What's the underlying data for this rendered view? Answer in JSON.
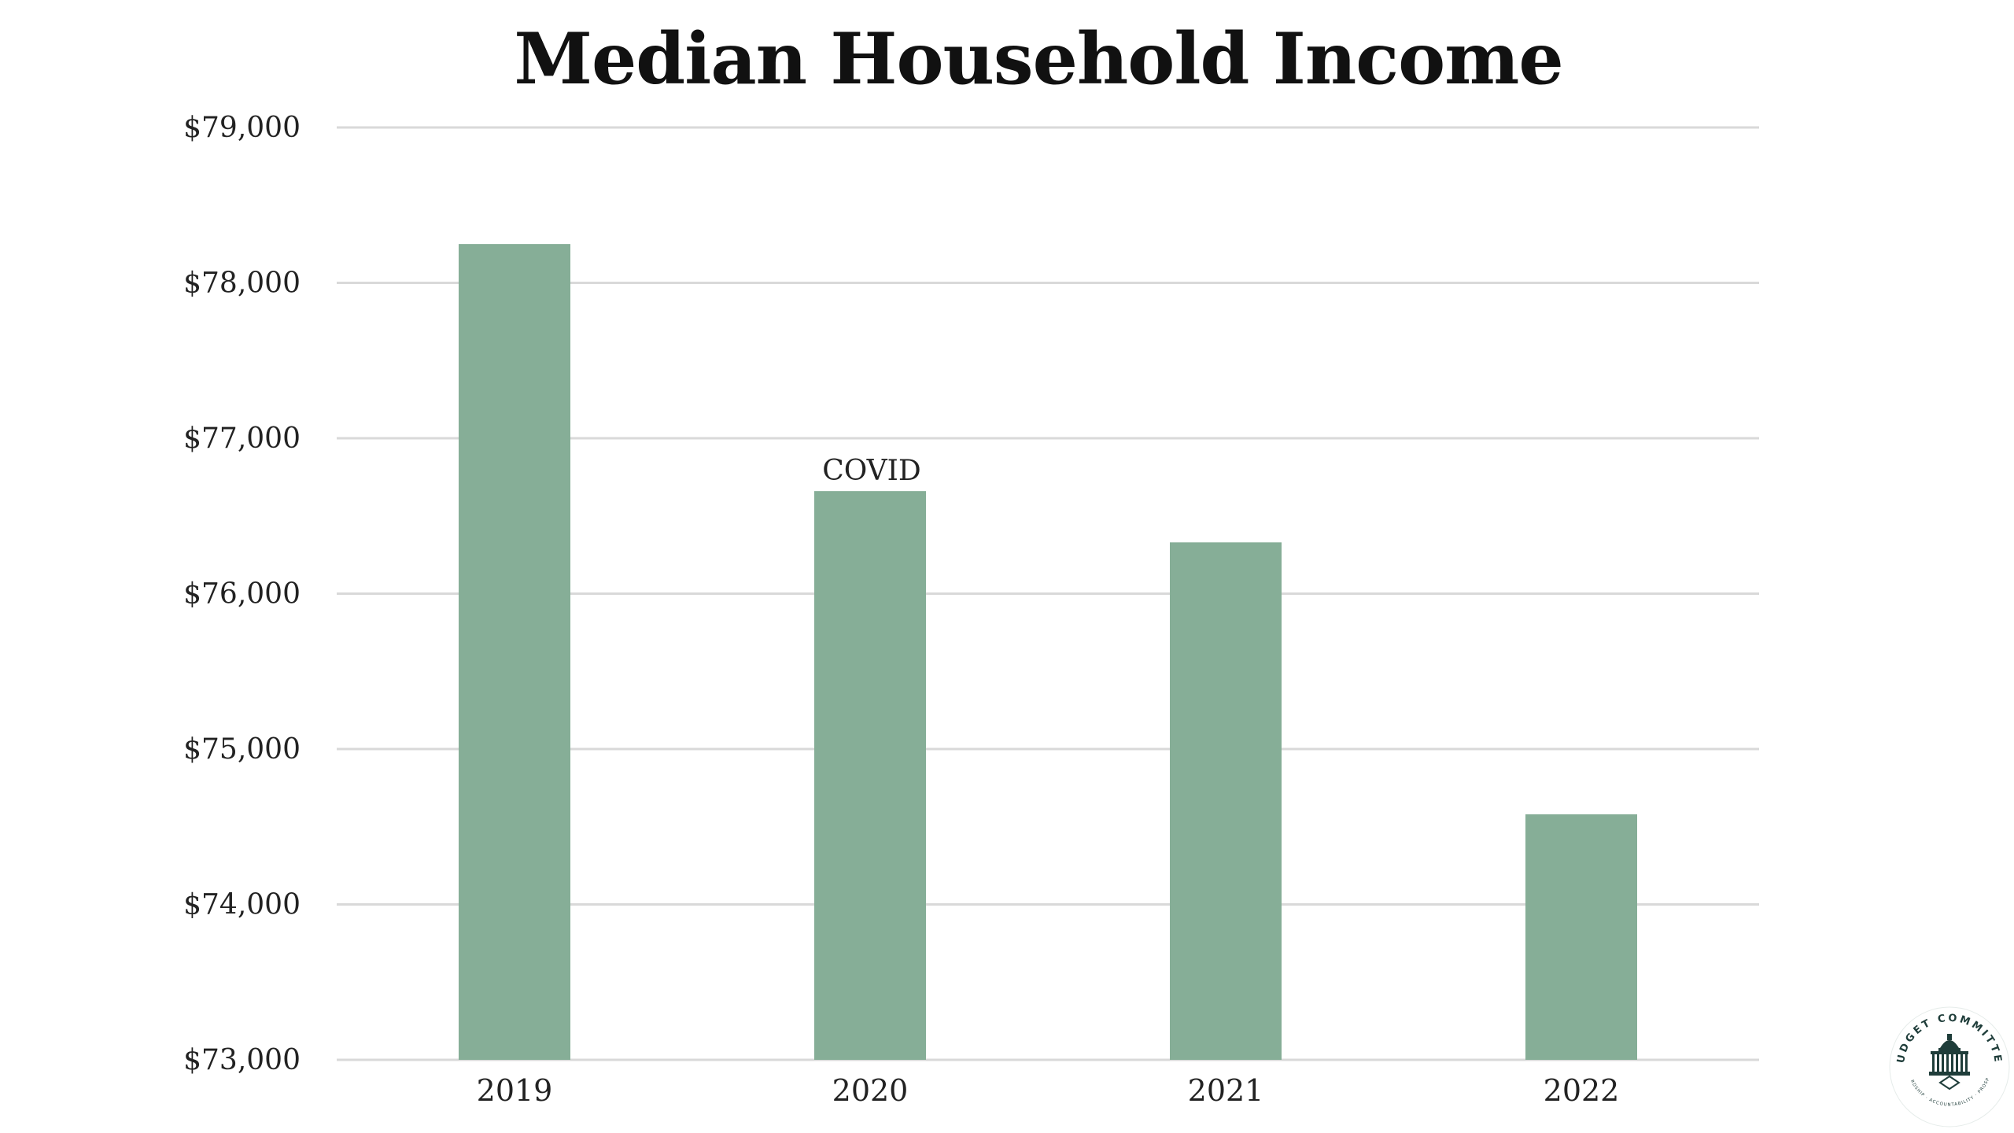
{
  "chart_data": {
    "type": "bar",
    "title": "Median Household Income",
    "xlabel": "",
    "ylabel": "",
    "categories": [
      "2019",
      "2020",
      "2021",
      "2022"
    ],
    "values": [
      78250,
      76660,
      76330,
      74580
    ],
    "ylim": [
      73000,
      79000
    ],
    "yticks": [
      73000,
      74000,
      75000,
      76000,
      77000,
      78000,
      79000
    ],
    "ytick_labels": [
      "$73,000",
      "$74,000",
      "$75,000",
      "$76,000",
      "$77,000",
      "$78,000",
      "$79,000"
    ],
    "annotations": [
      {
        "category": "2020",
        "text": "COVID"
      }
    ],
    "grid": true,
    "legend": "none",
    "bar_color": "#86ae97",
    "grid_color": "#d9d9d9"
  },
  "logo": {
    "ring_text": "BUDGET COMMITTEE",
    "motto_text": "STEWARDSHIP · ACCOUNTABILITY · PROSPERITY",
    "icon": "capitol-building-icon",
    "color": "#1f3d3a"
  }
}
